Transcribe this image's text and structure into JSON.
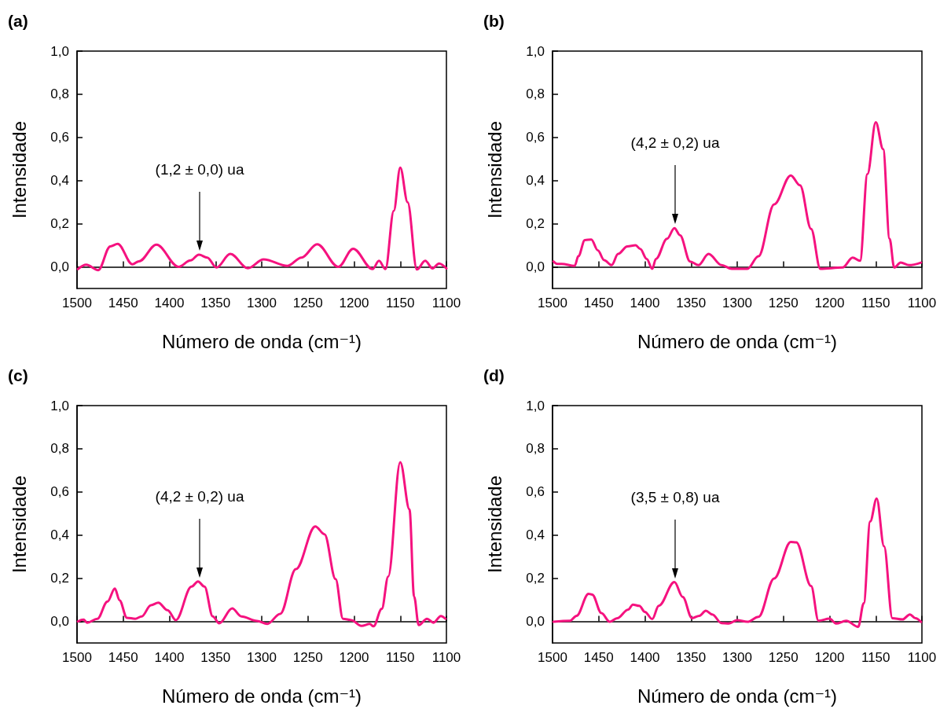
{
  "chart_data": [
    {
      "type": "line",
      "title": "(a)",
      "xlabel": "Número de onda (cm⁻¹)",
      "ylabel": "Intensidade",
      "line_style": "solid",
      "xlim": [
        1500,
        1100
      ],
      "xticks": [
        1500,
        1450,
        1400,
        1350,
        1300,
        1250,
        1200,
        1150,
        1100
      ],
      "ylim": [
        -0.1,
        1.0
      ],
      "yticks": [
        {
          "value": 0,
          "label": "0,0"
        },
        {
          "value": 0.2,
          "label": "0,2"
        },
        {
          "value": 0.4,
          "label": "0,4"
        },
        {
          "value": 0.6,
          "label": "0,6"
        },
        {
          "value": 0.8,
          "label": "0,8"
        },
        {
          "value": 1.0,
          "label": "1,0"
        }
      ],
      "annotations": [
        "(1,2 ± 0,0) ua"
      ],
      "series": [
        {
          "color": "#f5127f",
          "x": [
            1499,
            1490,
            1477,
            1464,
            1456,
            1440,
            1433,
            1414,
            1390,
            1377,
            1368,
            1359,
            1349,
            1334,
            1315,
            1298,
            1272,
            1257,
            1240,
            1217,
            1201,
            1180,
            1173,
            1166,
            1157,
            1150,
            1142,
            1132,
            1123,
            1115,
            1108,
            1100
          ],
          "values": [
            -0.01,
            0.01,
            -0.015,
            0.095,
            0.107,
            0.012,
            0.026,
            0.103,
            0.0,
            0.03,
            0.057,
            0.043,
            -0.003,
            0.06,
            -0.006,
            0.035,
            0.005,
            0.043,
            0.105,
            0.0,
            0.084,
            -0.01,
            0.028,
            -0.01,
            0.26,
            0.46,
            0.3,
            -0.012,
            0.028,
            -0.007,
            0.016,
            -0.007
          ]
        }
      ]
    },
    {
      "type": "line",
      "title": "(b)",
      "xlabel": "Número de onda (cm⁻¹)",
      "ylabel": "Intensidade",
      "line_style": "solid",
      "xlim": [
        1500,
        1100
      ],
      "xticks": [
        1500,
        1450,
        1400,
        1350,
        1300,
        1250,
        1200,
        1150,
        1100
      ],
      "ylim": [
        -0.1,
        1.0
      ],
      "yticks": [
        {
          "value": 0,
          "label": "0,0"
        },
        {
          "value": 0.2,
          "label": "0,2"
        },
        {
          "value": 0.4,
          "label": "0,4"
        },
        {
          "value": 0.6,
          "label": "0,6"
        },
        {
          "value": 0.8,
          "label": "0,8"
        },
        {
          "value": 1.0,
          "label": "1,0"
        }
      ],
      "annotations": [
        "(4,2 ± 0,2) ua"
      ],
      "series": [
        {
          "color": "#f5127f",
          "x": [
            1499,
            1495,
            1490,
            1476,
            1472,
            1465,
            1458,
            1451,
            1444,
            1436,
            1429,
            1419,
            1410,
            1405,
            1398,
            1392,
            1388,
            1376,
            1368,
            1362,
            1351,
            1342,
            1331,
            1317,
            1306,
            1289,
            1277,
            1260,
            1242,
            1232,
            1220,
            1210,
            1186,
            1175,
            1167,
            1159,
            1150,
            1142,
            1135,
            1130,
            1123,
            1114,
            1101
          ],
          "values": [
            0.025,
            0.014,
            0.014,
            0.005,
            0.05,
            0.124,
            0.127,
            0.077,
            0.031,
            0.008,
            0.06,
            0.095,
            0.1,
            0.083,
            0.037,
            -0.009,
            0.037,
            0.13,
            0.18,
            0.147,
            0.025,
            0.008,
            0.06,
            0.008,
            -0.009,
            -0.009,
            0.049,
            0.29,
            0.424,
            0.378,
            0.176,
            -0.009,
            -0.003,
            0.043,
            0.028,
            0.43,
            0.67,
            0.546,
            0.13,
            -0.003,
            0.02,
            0.008,
            0.02
          ]
        }
      ]
    },
    {
      "type": "line",
      "title": "(c)",
      "xlabel": "Número de onda (cm⁻¹)",
      "ylabel": "Intensidade",
      "line_style": "solid",
      "xlim": [
        1500,
        1100
      ],
      "xticks": [
        1500,
        1450,
        1400,
        1350,
        1300,
        1250,
        1200,
        1150,
        1100
      ],
      "ylim": [
        -0.1,
        1.0
      ],
      "yticks": [
        {
          "value": 0,
          "label": "0,0"
        },
        {
          "value": 0.2,
          "label": "0,2"
        },
        {
          "value": 0.4,
          "label": "0,4"
        },
        {
          "value": 0.6,
          "label": "0,6"
        },
        {
          "value": 0.8,
          "label": "0,8"
        },
        {
          "value": 1.0,
          "label": "1,0"
        }
      ],
      "annotations": [
        "(4,2 ± 0,2) ua"
      ],
      "series": [
        {
          "color": "#f5127f",
          "x": [
            1499,
            1493,
            1489,
            1478,
            1467,
            1459,
            1454,
            1446,
            1437,
            1430,
            1420,
            1412,
            1402,
            1393,
            1376,
            1369,
            1362,
            1353,
            1346,
            1332,
            1322,
            1305,
            1294,
            1280,
            1263,
            1242,
            1232,
            1220,
            1212,
            1203,
            1192,
            1183,
            1179,
            1170,
            1163,
            1150,
            1140,
            1135,
            1130,
            1121,
            1114,
            1106,
            1101
          ],
          "values": [
            0.0,
            0.008,
            -0.006,
            0.012,
            0.092,
            0.152,
            0.098,
            0.017,
            0.012,
            0.023,
            0.075,
            0.087,
            0.052,
            0.006,
            0.161,
            0.185,
            0.161,
            0.023,
            -0.009,
            0.06,
            0.023,
            0.002,
            -0.012,
            0.035,
            0.242,
            0.44,
            0.404,
            0.196,
            0.012,
            0.006,
            -0.021,
            -0.012,
            -0.023,
            0.058,
            0.208,
            0.738,
            0.519,
            0.115,
            -0.017,
            0.012,
            -0.006,
            0.025,
            0.012
          ]
        }
      ]
    },
    {
      "type": "line",
      "title": "(d)",
      "xlabel": "Número de onda (cm⁻¹)",
      "ylabel": "Intensidade",
      "line_style": "solid",
      "xlim": [
        1500,
        1100
      ],
      "xticks": [
        1500,
        1450,
        1400,
        1350,
        1300,
        1250,
        1200,
        1150,
        1100
      ],
      "ylim": [
        -0.1,
        1.0
      ],
      "yticks": [
        {
          "value": 0,
          "label": "0,0"
        },
        {
          "value": 0.2,
          "label": "0,2"
        },
        {
          "value": 0.4,
          "label": "0,4"
        },
        {
          "value": 0.6,
          "label": "0,6"
        },
        {
          "value": 0.8,
          "label": "0,8"
        },
        {
          "value": 1.0,
          "label": "1,0"
        }
      ],
      "annotations": [
        "(3,5 ± 0,8) ua"
      ],
      "series": [
        {
          "color": "#f5127f",
          "x": [
            1499,
            1481,
            1474,
            1461,
            1457,
            1447,
            1438,
            1430,
            1418,
            1413,
            1406,
            1400,
            1392,
            1385,
            1368,
            1359,
            1349,
            1341,
            1334,
            1327,
            1317,
            1309,
            1300,
            1289,
            1277,
            1260,
            1242,
            1236,
            1220,
            1212,
            1200,
            1193,
            1182,
            1169,
            1163,
            1156,
            1149,
            1141,
            1132,
            1121,
            1113,
            1107,
            1101
          ],
          "values": [
            -0.002,
            0.003,
            0.026,
            0.128,
            0.124,
            0.038,
            -0.002,
            0.015,
            0.055,
            0.078,
            0.072,
            0.044,
            0.011,
            0.072,
            0.182,
            0.113,
            0.015,
            0.026,
            0.049,
            0.032,
            -0.008,
            -0.01,
            0.006,
            -0.002,
            0.021,
            0.199,
            0.368,
            0.366,
            0.164,
            0.003,
            0.013,
            -0.01,
            0.003,
            -0.025,
            0.084,
            0.463,
            0.569,
            0.348,
            0.015,
            0.009,
            0.032,
            0.015,
            -0.002
          ]
        }
      ]
    }
  ]
}
